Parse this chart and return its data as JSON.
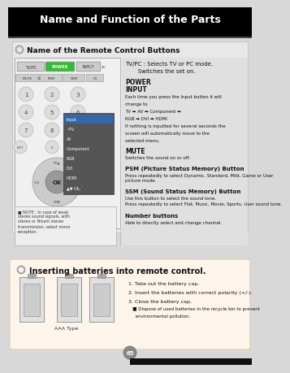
{
  "title": "Name and Function of the Parts",
  "title_bg": "#000000",
  "title_color": "#ffffff",
  "section1_title": "Name of the Remote Control Buttons",
  "section2_title": "Inserting batteries into remote control.",
  "page_bg": "#d8d8d8",
  "content_bg": "#e8e8e8",
  "section2_bg": "#fdf5ec",
  "info_panel_bg": "#e0e0e0",
  "tvpc_line1": "TV/PC : Selects TV or PC mode.",
  "tvpc_line2": "       Switches the set on.",
  "power_text": "POWER",
  "input_text": "INPUT",
  "input_menu_items": [
    "Input",
    "•TV",
    "AV",
    "Component",
    "RGB",
    "DVI",
    "HDMI",
    "▲▼ Ok,"
  ],
  "input_desc_lines": [
    "Each time you press the Input button it will",
    "change to",
    "TV ➡ AV ➡ Component ➡",
    "RGB ➡ DVI ➡ HDMI",
    "If nothing is inputted for several seconds the",
    "screen will automatically move to the",
    "selected menu."
  ],
  "mute_bold": "MUTE",
  "mute_desc": "Switches the sound on or off.",
  "psm_bold": "PSM (Picture Status Memory) Button",
  "psm_desc": "Press repeatedly to select Dynamic, Standard, Mild, Game or User\npicture mode.",
  "ssm_bold": "SSM (Sound Status Memory) Button",
  "ssm_desc1": "Use this button to select the sound tone.",
  "ssm_desc2": "Press repeatedly to select Flat, Music, Movie, Sports, User sound tone.",
  "num_bold": "Number buttons",
  "num_desc": "Able to directly select and change channel.",
  "note_text": "■ NOTE : In case of weak\nstereo sound signals, with\nstereo or Nicam stereo\ntransmission, select mono\nreception.",
  "bat1": "1. Take out the battery cap.",
  "bat2": "2. Insert the batteries with correct polarity (+/-).",
  "bat3": "3. Close the battery cap.",
  "bat4": "   ■ Dispose of used batteries in the recycle bin to prevent",
  "bat5": "     environmental pollution.",
  "aaa_text": "AAA Type",
  "page_num": "65"
}
